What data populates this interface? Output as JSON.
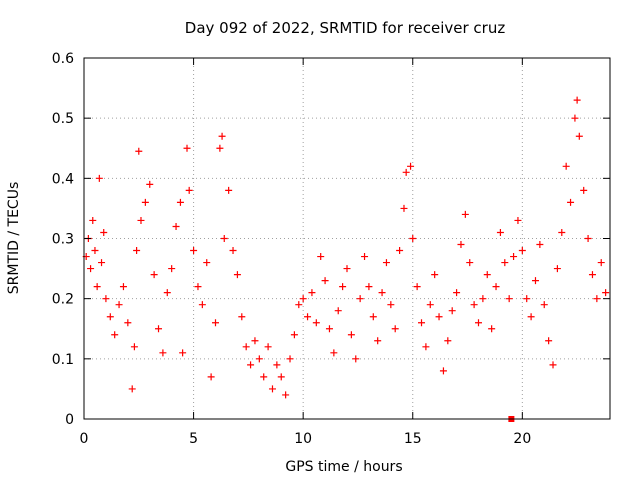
{
  "chart_data": {
    "type": "scatter",
    "title": "Day 092 of 2022, SRMTID for receiver cruz",
    "xlabel": "GPS time / hours",
    "ylabel": "SRMTID / TECUs",
    "xlim": [
      0,
      24
    ],
    "ylim": [
      0,
      0.6
    ],
    "xticks": [
      0,
      5,
      10,
      15,
      20
    ],
    "yticks": [
      0,
      0.1,
      0.2,
      0.3,
      0.4,
      0.5,
      0.6
    ],
    "xtick_labels": [
      "0",
      "5",
      "10",
      "15",
      "20"
    ],
    "ytick_labels": [
      "0",
      "0.1",
      "0.2",
      "0.3",
      "0.4",
      "0.5",
      "0.6"
    ],
    "grid": true,
    "marker": "+",
    "color": "#ff0000",
    "series": [
      {
        "name": "SRMTID",
        "points": [
          [
            0.1,
            0.27
          ],
          [
            0.2,
            0.3
          ],
          [
            0.3,
            0.25
          ],
          [
            0.4,
            0.33
          ],
          [
            0.5,
            0.28
          ],
          [
            0.6,
            0.22
          ],
          [
            0.7,
            0.4
          ],
          [
            0.8,
            0.26
          ],
          [
            0.9,
            0.31
          ],
          [
            1.0,
            0.2
          ],
          [
            1.2,
            0.17
          ],
          [
            1.4,
            0.14
          ],
          [
            1.6,
            0.19
          ],
          [
            1.8,
            0.22
          ],
          [
            2.0,
            0.16
          ],
          [
            2.2,
            0.05
          ],
          [
            2.3,
            0.12
          ],
          [
            2.4,
            0.28
          ],
          [
            2.5,
            0.445
          ],
          [
            2.6,
            0.33
          ],
          [
            2.8,
            0.36
          ],
          [
            3.0,
            0.39
          ],
          [
            3.2,
            0.24
          ],
          [
            3.4,
            0.15
          ],
          [
            3.6,
            0.11
          ],
          [
            3.8,
            0.21
          ],
          [
            4.0,
            0.25
          ],
          [
            4.2,
            0.32
          ],
          [
            4.4,
            0.36
          ],
          [
            4.5,
            0.11
          ],
          [
            4.7,
            0.45
          ],
          [
            4.8,
            0.38
          ],
          [
            5.0,
            0.28
          ],
          [
            5.2,
            0.22
          ],
          [
            5.4,
            0.19
          ],
          [
            5.6,
            0.26
          ],
          [
            5.8,
            0.07
          ],
          [
            6.0,
            0.16
          ],
          [
            6.2,
            0.45
          ],
          [
            6.3,
            0.47
          ],
          [
            6.4,
            0.3
          ],
          [
            6.6,
            0.38
          ],
          [
            6.8,
            0.28
          ],
          [
            7.0,
            0.24
          ],
          [
            7.2,
            0.17
          ],
          [
            7.4,
            0.12
          ],
          [
            7.6,
            0.09
          ],
          [
            7.8,
            0.13
          ],
          [
            8.0,
            0.1
          ],
          [
            8.2,
            0.07
          ],
          [
            8.4,
            0.12
          ],
          [
            8.6,
            0.05
          ],
          [
            8.8,
            0.09
          ],
          [
            9.0,
            0.07
          ],
          [
            9.2,
            0.04
          ],
          [
            9.4,
            0.1
          ],
          [
            9.6,
            0.14
          ],
          [
            9.8,
            0.19
          ],
          [
            10.0,
            0.2
          ],
          [
            10.2,
            0.17
          ],
          [
            10.4,
            0.21
          ],
          [
            10.6,
            0.16
          ],
          [
            10.8,
            0.27
          ],
          [
            11.0,
            0.23
          ],
          [
            11.2,
            0.15
          ],
          [
            11.4,
            0.11
          ],
          [
            11.6,
            0.18
          ],
          [
            11.8,
            0.22
          ],
          [
            12.0,
            0.25
          ],
          [
            12.2,
            0.14
          ],
          [
            12.4,
            0.1
          ],
          [
            12.6,
            0.2
          ],
          [
            12.8,
            0.27
          ],
          [
            13.0,
            0.22
          ],
          [
            13.2,
            0.17
          ],
          [
            13.4,
            0.13
          ],
          [
            13.6,
            0.21
          ],
          [
            13.8,
            0.26
          ],
          [
            14.0,
            0.19
          ],
          [
            14.2,
            0.15
          ],
          [
            14.4,
            0.28
          ],
          [
            14.6,
            0.35
          ],
          [
            14.7,
            0.41
          ],
          [
            14.9,
            0.42
          ],
          [
            15.0,
            0.3
          ],
          [
            15.2,
            0.22
          ],
          [
            15.4,
            0.16
          ],
          [
            15.6,
            0.12
          ],
          [
            15.8,
            0.19
          ],
          [
            16.0,
            0.24
          ],
          [
            16.2,
            0.17
          ],
          [
            16.4,
            0.08
          ],
          [
            16.6,
            0.13
          ],
          [
            16.8,
            0.18
          ],
          [
            17.0,
            0.21
          ],
          [
            17.2,
            0.29
          ],
          [
            17.4,
            0.34
          ],
          [
            17.6,
            0.26
          ],
          [
            17.8,
            0.19
          ],
          [
            18.0,
            0.16
          ],
          [
            18.2,
            0.2
          ],
          [
            18.4,
            0.24
          ],
          [
            18.6,
            0.15
          ],
          [
            18.8,
            0.22
          ],
          [
            19.0,
            0.31
          ],
          [
            19.2,
            0.26
          ],
          [
            19.4,
            0.2
          ],
          [
            19.6,
            0.27
          ],
          [
            19.8,
            0.33
          ],
          [
            20.0,
            0.28
          ],
          [
            20.2,
            0.2
          ],
          [
            20.4,
            0.17
          ],
          [
            20.6,
            0.23
          ],
          [
            20.8,
            0.29
          ],
          [
            21.0,
            0.19
          ],
          [
            21.2,
            0.13
          ],
          [
            21.4,
            0.09
          ],
          [
            21.6,
            0.25
          ],
          [
            21.8,
            0.31
          ],
          [
            22.0,
            0.42
          ],
          [
            22.2,
            0.36
          ],
          [
            22.4,
            0.5
          ],
          [
            22.5,
            0.53
          ],
          [
            22.6,
            0.47
          ],
          [
            22.8,
            0.38
          ],
          [
            23.0,
            0.3
          ],
          [
            23.2,
            0.24
          ],
          [
            23.4,
            0.2
          ],
          [
            23.6,
            0.26
          ],
          [
            23.8,
            0.21
          ]
        ]
      }
    ],
    "outlier": [
      19.5,
      0.0
    ]
  }
}
